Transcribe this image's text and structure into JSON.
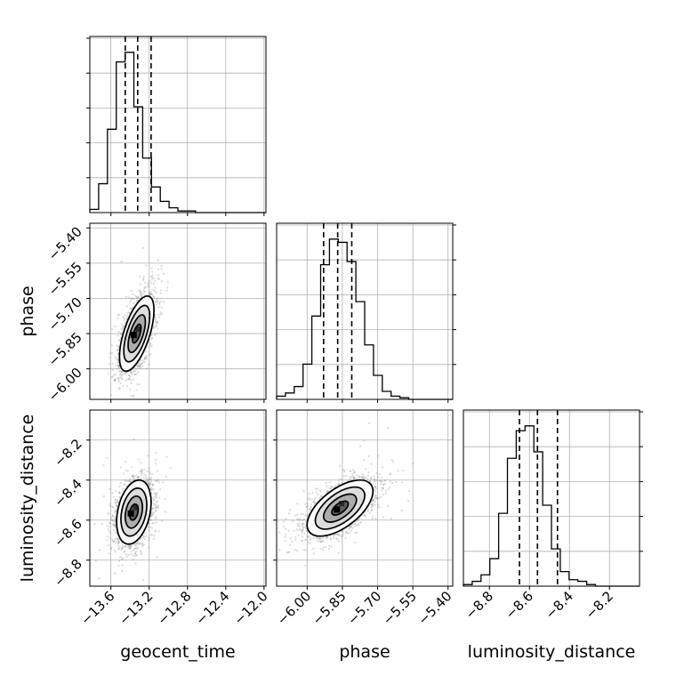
{
  "chart_data": {
    "type": "corner",
    "parameters": [
      "geocent_time",
      "phase",
      "luminosity_distance"
    ],
    "axis_labels": {
      "geocent_time": "geocent_time",
      "phase": "phase",
      "luminosity_distance": "luminosity_distance"
    },
    "ranges": {
      "geocent_time": [
        -13.82,
        -11.98
      ],
      "phase": [
        -6.13,
        -5.38
      ],
      "luminosity_distance": [
        -8.93,
        -8.05
      ]
    },
    "ticks": {
      "geocent_time": [
        {
          "value": -13.6,
          "label": "−13.6"
        },
        {
          "value": -13.2,
          "label": "−13.2"
        },
        {
          "value": -12.8,
          "label": "−12.8"
        },
        {
          "value": -12.4,
          "label": "−12.4"
        },
        {
          "value": -12.0,
          "label": "−12.0"
        }
      ],
      "phase": [
        {
          "value": -6.0,
          "label": "−6.00"
        },
        {
          "value": -5.85,
          "label": "−5.85"
        },
        {
          "value": -5.7,
          "label": "−5.70"
        },
        {
          "value": -5.55,
          "label": "−5.55"
        },
        {
          "value": -5.4,
          "label": "−5.40"
        }
      ],
      "luminosity_distance": [
        {
          "value": -8.8,
          "label": "−8.8"
        },
        {
          "value": -8.6,
          "label": "−8.6"
        },
        {
          "value": -8.4,
          "label": "−8.4"
        },
        {
          "value": -8.2,
          "label": "−8.2"
        }
      ]
    },
    "quantiles": {
      "geocent_time": [
        -13.45,
        -13.32,
        -13.18
      ],
      "phase": [
        -5.93,
        -5.87,
        -5.81
      ],
      "luminosity_distance": [
        -8.65,
        -8.56,
        -8.46
      ]
    },
    "histograms": {
      "geocent_time": [
        0.02,
        0.18,
        0.52,
        0.94,
        1.0,
        0.66,
        0.34,
        0.16,
        0.07,
        0.03,
        0.01,
        0.01,
        0.0,
        0.0,
        0.0,
        0.0,
        0.0,
        0.0,
        0.0,
        0.0
      ],
      "phase": [
        0.02,
        0.04,
        0.08,
        0.22,
        0.52,
        0.84,
        1.0,
        0.98,
        0.86,
        0.61,
        0.34,
        0.15,
        0.05,
        0.02,
        0.01,
        0.0,
        0.0,
        0.0,
        0.0,
        0.0
      ],
      "luminosity_distance": [
        0.01,
        0.03,
        0.07,
        0.17,
        0.45,
        0.79,
        0.96,
        0.99,
        0.83,
        0.5,
        0.23,
        0.09,
        0.04,
        0.03,
        0.01,
        0.0,
        0.0,
        0.0,
        0.0,
        0.0
      ]
    },
    "correlations": {
      "phase|geocent_time": {
        "center": [
          -13.33,
          -5.85
        ],
        "sigma": [
          0.09,
          0.08
        ],
        "rho": 0.62
      },
      "luminosity_distance|geocent_time": {
        "center": [
          -13.36,
          -8.56
        ],
        "sigma": [
          0.09,
          0.08
        ],
        "rho": 0.3
      },
      "luminosity_distance|phase": {
        "center": [
          -5.86,
          -8.54
        ],
        "sigma": [
          0.07,
          0.07
        ],
        "rho": 0.6
      }
    },
    "contour_levels_sigma": [
      0.5,
      1.0,
      1.5,
      2.0
    ],
    "grid": true,
    "colors": {
      "points": "#8c8c8c",
      "density_dark": "#000000",
      "contour": "#000000",
      "grid": "#b0b0b0"
    }
  }
}
